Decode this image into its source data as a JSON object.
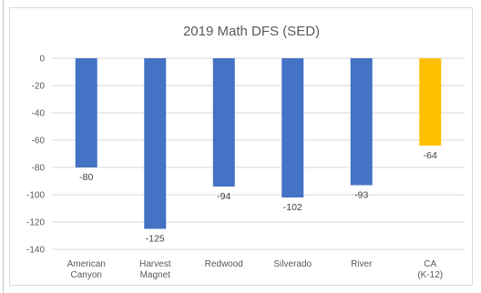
{
  "chart_data": {
    "type": "bar",
    "title": "2019 Math DFS (SED)",
    "xlabel": "",
    "ylabel": "",
    "categories": [
      [
        "American",
        "Canyon"
      ],
      [
        "Harvest",
        "Magnet"
      ],
      [
        "Redwood"
      ],
      [
        "Silverado"
      ],
      [
        "River"
      ],
      [
        "CA",
        "(K-12)"
      ]
    ],
    "values": [
      -80,
      -125,
      -94,
      -102,
      -93,
      -64
    ],
    "data_labels": [
      "-80",
      "-125",
      "-94",
      "-102",
      "-93",
      "-64"
    ],
    "bar_colors": [
      "#4472c4",
      "#4472c4",
      "#4472c4",
      "#4472c4",
      "#4472c4",
      "#ffc000"
    ],
    "ylim": [
      -140,
      0
    ],
    "yticks": [
      0,
      -20,
      -40,
      -60,
      -80,
      -100,
      -120,
      -140
    ],
    "grid": true,
    "legend": "none"
  }
}
